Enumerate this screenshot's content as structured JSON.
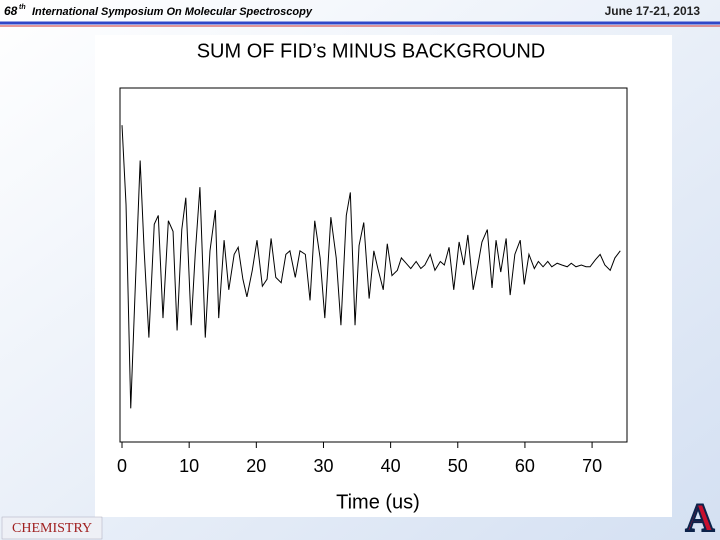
{
  "header": {
    "edition": "68",
    "superscript": "th",
    "title": "International Symposium On Molecular Spectroscopy",
    "date": "June 17-21, 2013"
  },
  "footer": {
    "department_logo": "CHEMISTRY",
    "university_logo": "A"
  },
  "chart_data": {
    "type": "line",
    "title": "SUM OF FID’s  MINUS BACKGROUND",
    "x_label": "Time (us)",
    "color": "#000000",
    "x": [
      0,
      0.6,
      1.3,
      1.9,
      2.7,
      3.3,
      4.0,
      4.8,
      5.4,
      6.1,
      6.9,
      7.6,
      8.2,
      8.9,
      9.5,
      10.3,
      10.9,
      11.6,
      12.4,
      13.1,
      13.9,
      14.4,
      15.2,
      15.9,
      16.7,
      17.3,
      18.0,
      18.6,
      19.4,
      20.1,
      20.9,
      21.6,
      22.2,
      22.9,
      23.7,
      24.4,
      25.0,
      25.8,
      26.5,
      27.3,
      28.0,
      28.7,
      29.5,
      30.2,
      31.1,
      31.9,
      32.6,
      33.4,
      34.0,
      34.7,
      35.3,
      36.0,
      36.8,
      37.5,
      38.1,
      38.9,
      39.5,
      40.2,
      41.0,
      41.6,
      42.3,
      43.0,
      43.8,
      44.5,
      45.1,
      45.9,
      46.6,
      47.4,
      48.0,
      48.7,
      49.4,
      50.2,
      50.9,
      51.5,
      52.3,
      53.0,
      53.6,
      54.4,
      55.1,
      55.7,
      56.4,
      57.2,
      57.8,
      58.5,
      59.3,
      59.9,
      60.6,
      61.4,
      62.0,
      62.7,
      63.4,
      64.0,
      64.8,
      65.5,
      66.3,
      66.9,
      67.6,
      68.4,
      69.1,
      69.7,
      70.5,
      71.2,
      71.9,
      72.7,
      73.4,
      74.2
    ],
    "values": [
      0.79,
      0.34,
      -0.81,
      -0.2,
      0.59,
      0.08,
      -0.41,
      0.23,
      0.28,
      -0.3,
      0.25,
      0.19,
      -0.37,
      0.2,
      0.38,
      -0.34,
      0.06,
      0.44,
      -0.41,
      0.08,
      0.31,
      -0.3,
      0.14,
      -0.14,
      0.06,
      0.1,
      -0.08,
      -0.18,
      -0.03,
      0.14,
      -0.12,
      -0.08,
      0.15,
      -0.07,
      -0.1,
      0.06,
      0.08,
      -0.07,
      0.08,
      0.06,
      -0.2,
      0.25,
      0.04,
      -0.3,
      0.27,
      0.04,
      -0.34,
      0.28,
      0.41,
      -0.34,
      0.11,
      0.24,
      -0.19,
      0.08,
      -0.02,
      -0.14,
      0.12,
      -0.06,
      -0.03,
      0.04,
      0.01,
      -0.02,
      0.02,
      -0.02,
      0,
      0.06,
      -0.03,
      0.02,
      0,
      0.1,
      -0.14,
      0.13,
      0,
      0.17,
      -0.14,
      0,
      0.13,
      0.2,
      -0.13,
      0.14,
      -0.04,
      0.15,
      -0.17,
      0.06,
      0.14,
      -0.11,
      0.06,
      -0.02,
      0.02,
      -0.01,
      0.02,
      -0.01,
      0.01,
      0,
      -0.01,
      0.01,
      -0.01,
      0,
      -0.01,
      -0.01,
      0.03,
      0.06,
      0,
      -0.03,
      0.04,
      0.08
    ],
    "xlim": [
      -0.3,
      75.2
    ],
    "xticks": [
      0,
      10,
      20,
      30,
      40,
      50,
      60,
      70
    ],
    "ylim": [
      -1,
      1
    ]
  }
}
